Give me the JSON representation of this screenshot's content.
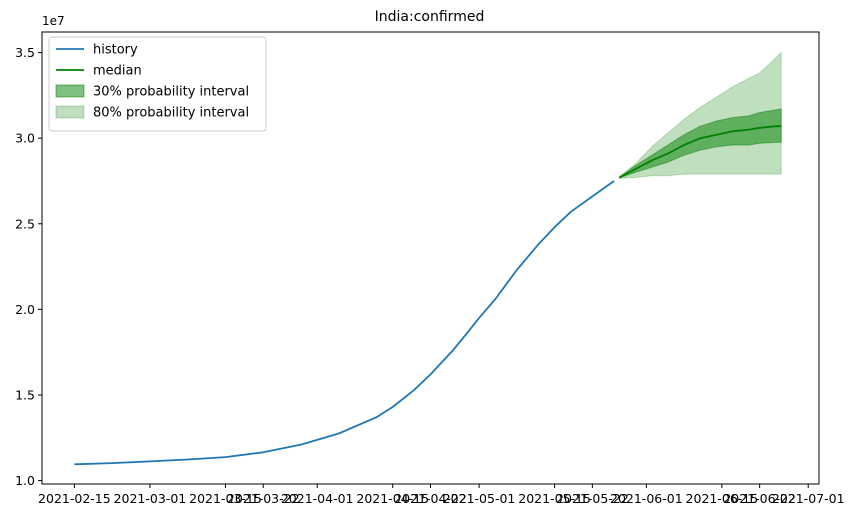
{
  "chart_data": {
    "type": "line",
    "title": "India:confirmed",
    "xlabel": "",
    "ylabel": "",
    "y_exponent_label": "1e7",
    "xlim": [
      "2021-02-09",
      "2021-07-03"
    ],
    "ylim": [
      0.98,
      3.62
    ],
    "y_ticks": [
      1.0,
      1.5,
      2.0,
      2.5,
      3.0,
      3.5
    ],
    "y_tick_labels": [
      "1.0",
      "1.5",
      "2.0",
      "2.5",
      "3.0",
      "3.5"
    ],
    "x_ticks": [
      "2021-02-15",
      "2021-03-01",
      "2021-03-15",
      "2021-03-22",
      "2021-04-01",
      "2021-04-15",
      "2021-04-22",
      "2021-05-01",
      "2021-05-15",
      "2021-05-22",
      "2021-06-01",
      "2021-06-15",
      "2021-06-22",
      "2021-07-01"
    ],
    "x_tick_labels": [
      "2021-02-15",
      "2021-03-01",
      "2021-03-15",
      "2021-03-22",
      "2021-04-01",
      "2021-04-15",
      "2021-04-22",
      "2021-05-01",
      "2021-05-15",
      "2021-05-22",
      "2021-06-01",
      "2021-06-15",
      "2021-06-22",
      "2021-07-01"
    ],
    "grid": false,
    "legend_position": "top-left",
    "legend": [
      {
        "label": "history",
        "kind": "line",
        "color": "#1f77b4"
      },
      {
        "label": "median",
        "kind": "line",
        "color": "#008000"
      },
      {
        "label": "30% probability interval",
        "kind": "patch",
        "color": "#008000",
        "alpha": 0.5
      },
      {
        "label": "80% probability interval",
        "kind": "patch",
        "color": "#008000",
        "alpha": 0.25
      }
    ],
    "series": [
      {
        "name": "history",
        "color": "#1f77b4",
        "points": [
          [
            "2021-02-15",
            1.095
          ],
          [
            "2021-02-22",
            1.102
          ],
          [
            "2021-03-01",
            1.112
          ],
          [
            "2021-03-08",
            1.123
          ],
          [
            "2021-03-15",
            1.137
          ],
          [
            "2021-03-22",
            1.165
          ],
          [
            "2021-03-29",
            1.21
          ],
          [
            "2021-04-05",
            1.275
          ],
          [
            "2021-04-12",
            1.37
          ],
          [
            "2021-04-15",
            1.43
          ],
          [
            "2021-04-19",
            1.53
          ],
          [
            "2021-04-22",
            1.62
          ],
          [
            "2021-04-26",
            1.755
          ],
          [
            "2021-04-29",
            1.87
          ],
          [
            "2021-05-01",
            1.95
          ],
          [
            "2021-05-04",
            2.06
          ],
          [
            "2021-05-08",
            2.23
          ],
          [
            "2021-05-12",
            2.38
          ],
          [
            "2021-05-15",
            2.48
          ],
          [
            "2021-05-18",
            2.57
          ],
          [
            "2021-05-22",
            2.66
          ],
          [
            "2021-05-26",
            2.75
          ]
        ]
      },
      {
        "name": "median",
        "color": "#008000",
        "points": [
          [
            "2021-05-27",
            2.77
          ],
          [
            "2021-05-30",
            2.82
          ],
          [
            "2021-06-02",
            2.87
          ],
          [
            "2021-06-05",
            2.91
          ],
          [
            "2021-06-08",
            2.96
          ],
          [
            "2021-06-11",
            3.0
          ],
          [
            "2021-06-14",
            3.02
          ],
          [
            "2021-06-17",
            3.04
          ],
          [
            "2021-06-20",
            3.05
          ],
          [
            "2021-06-22",
            3.06
          ],
          [
            "2021-06-25",
            3.07
          ],
          [
            "2021-06-26",
            3.07
          ]
        ]
      }
    ],
    "bands": [
      {
        "name": "80% probability interval",
        "color": "#008000",
        "alpha": 0.25,
        "points": [
          [
            "2021-05-27",
            2.765,
            2.775
          ],
          [
            "2021-05-30",
            2.77,
            2.85
          ],
          [
            "2021-06-02",
            2.78,
            2.95
          ],
          [
            "2021-06-05",
            2.78,
            3.03
          ],
          [
            "2021-06-08",
            2.79,
            3.11
          ],
          [
            "2021-06-11",
            2.79,
            3.18
          ],
          [
            "2021-06-14",
            2.79,
            3.24
          ],
          [
            "2021-06-17",
            2.79,
            3.3
          ],
          [
            "2021-06-20",
            2.79,
            3.35
          ],
          [
            "2021-06-22",
            2.79,
            3.38
          ],
          [
            "2021-06-25",
            2.79,
            3.47
          ],
          [
            "2021-06-26",
            2.79,
            3.5
          ]
        ]
      },
      {
        "name": "30% probability interval",
        "color": "#008000",
        "alpha": 0.5,
        "points": [
          [
            "2021-05-27",
            2.768,
            2.772
          ],
          [
            "2021-05-30",
            2.8,
            2.84
          ],
          [
            "2021-06-02",
            2.83,
            2.9
          ],
          [
            "2021-06-05",
            2.86,
            2.96
          ],
          [
            "2021-06-08",
            2.9,
            3.02
          ],
          [
            "2021-06-11",
            2.93,
            3.07
          ],
          [
            "2021-06-14",
            2.95,
            3.1
          ],
          [
            "2021-06-17",
            2.96,
            3.12
          ],
          [
            "2021-06-20",
            2.96,
            3.13
          ],
          [
            "2021-06-22",
            2.97,
            3.15
          ],
          [
            "2021-06-25",
            2.975,
            3.165
          ],
          [
            "2021-06-26",
            2.975,
            3.17
          ]
        ]
      }
    ]
  }
}
